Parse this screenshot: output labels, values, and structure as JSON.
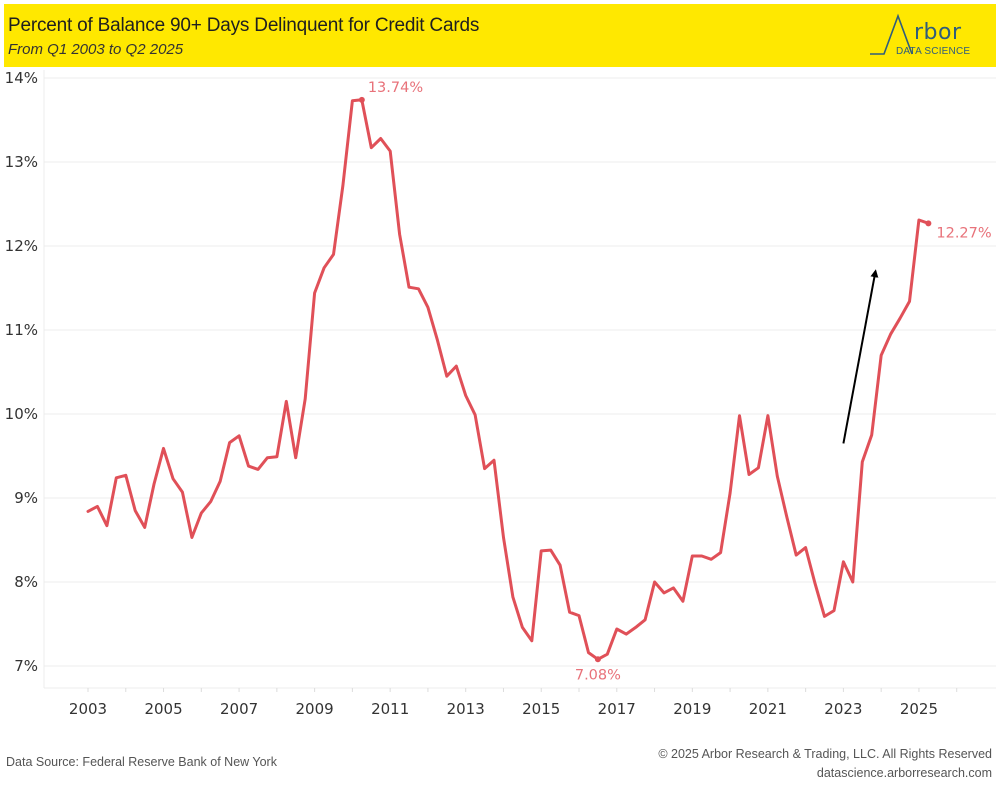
{
  "header": {
    "title": "Percent of Balance 90+ Days Delinquent for Credit Cards",
    "subtitle": "From Q1 2003 to Q2 2025",
    "logo_word": "rbor",
    "logo_sub": "DATA SCIENCE",
    "background": "#ffe800",
    "logo_color": "#2f5d7c"
  },
  "footer": {
    "source": "Data Source: Federal Reserve Bank of New York",
    "copyright": "© 2025 Arbor Research & Trading, LLC. All Rights Reserved",
    "website": "datascience.arborresearch.com"
  },
  "chart_data": {
    "type": "line",
    "title": "Percent of Balance 90+ Days Delinquent for Credit Cards",
    "subtitle": "From Q1 2003 to Q2 2025",
    "xlabel": "",
    "ylabel": "",
    "ylim": [
      7,
      14
    ],
    "xlim": [
      2003,
      2026.9
    ],
    "grid": "horizontal",
    "legend": "none",
    "line_color": "#e05058",
    "label_color": "#e8727a",
    "arrow_color": "#000000",
    "y_ticks": [
      {
        "value": 14,
        "label": "14%"
      },
      {
        "value": 13,
        "label": "13%"
      },
      {
        "value": 12,
        "label": "12%"
      },
      {
        "value": 11,
        "label": "11%"
      },
      {
        "value": 10,
        "label": "10%"
      },
      {
        "value": 9,
        "label": "9%"
      },
      {
        "value": 8,
        "label": "8%"
      },
      {
        "value": 7,
        "label": "7%"
      }
    ],
    "x_ticks": [
      {
        "value": 2003,
        "label": "2003"
      },
      {
        "value": 2005,
        "label": "2005"
      },
      {
        "value": 2007,
        "label": "2007"
      },
      {
        "value": 2009,
        "label": "2009"
      },
      {
        "value": 2011,
        "label": "2011"
      },
      {
        "value": 2013,
        "label": "2013"
      },
      {
        "value": 2015,
        "label": "2015"
      },
      {
        "value": 2017,
        "label": "2017"
      },
      {
        "value": 2019,
        "label": "2019"
      },
      {
        "value": 2021,
        "label": "2021"
      },
      {
        "value": 2023,
        "label": "2023"
      },
      {
        "value": 2025,
        "label": "2025"
      }
    ],
    "series": [
      {
        "name": "Percent of Balance 90+ Days Delinquent",
        "start": "Q1 2003",
        "frequency": "quarterly",
        "values": [
          8.84,
          8.9,
          8.67,
          9.24,
          9.27,
          8.85,
          8.65,
          9.17,
          9.59,
          9.23,
          9.07,
          8.53,
          8.82,
          8.96,
          9.2,
          9.66,
          9.74,
          9.38,
          9.34,
          9.48,
          9.49,
          10.15,
          9.48,
          10.18,
          11.44,
          11.74,
          11.9,
          12.72,
          13.73,
          13.74,
          13.17,
          13.28,
          13.13,
          12.14,
          11.51,
          11.49,
          11.27,
          10.88,
          10.45,
          10.57,
          10.22,
          9.99,
          9.35,
          9.45,
          8.53,
          7.82,
          7.46,
          7.3,
          8.37,
          8.38,
          8.2,
          7.64,
          7.6,
          7.16,
          7.08,
          7.14,
          7.44,
          7.38,
          7.46,
          7.55,
          8.0,
          7.87,
          7.93,
          7.77,
          8.31,
          8.31,
          8.27,
          8.35,
          9.06,
          9.98,
          9.28,
          9.36,
          9.98,
          9.26,
          8.78,
          8.32,
          8.41,
          7.98,
          7.59,
          7.66,
          8.24,
          8.0,
          9.43,
          9.75,
          10.7,
          10.95,
          11.14,
          11.34,
          12.31,
          12.27
        ]
      }
    ],
    "annotations": [
      {
        "type": "label",
        "text": "13.74%",
        "index": 29,
        "position": "above-right"
      },
      {
        "type": "label",
        "text": "7.08%",
        "index": 54,
        "position": "below"
      },
      {
        "type": "label",
        "text": "12.27%",
        "index": 89,
        "position": "right"
      },
      {
        "type": "arrow",
        "from": {
          "x": 2023.0,
          "y": 9.65
        },
        "to": {
          "x": 2023.85,
          "y": 11.7
        }
      }
    ]
  }
}
